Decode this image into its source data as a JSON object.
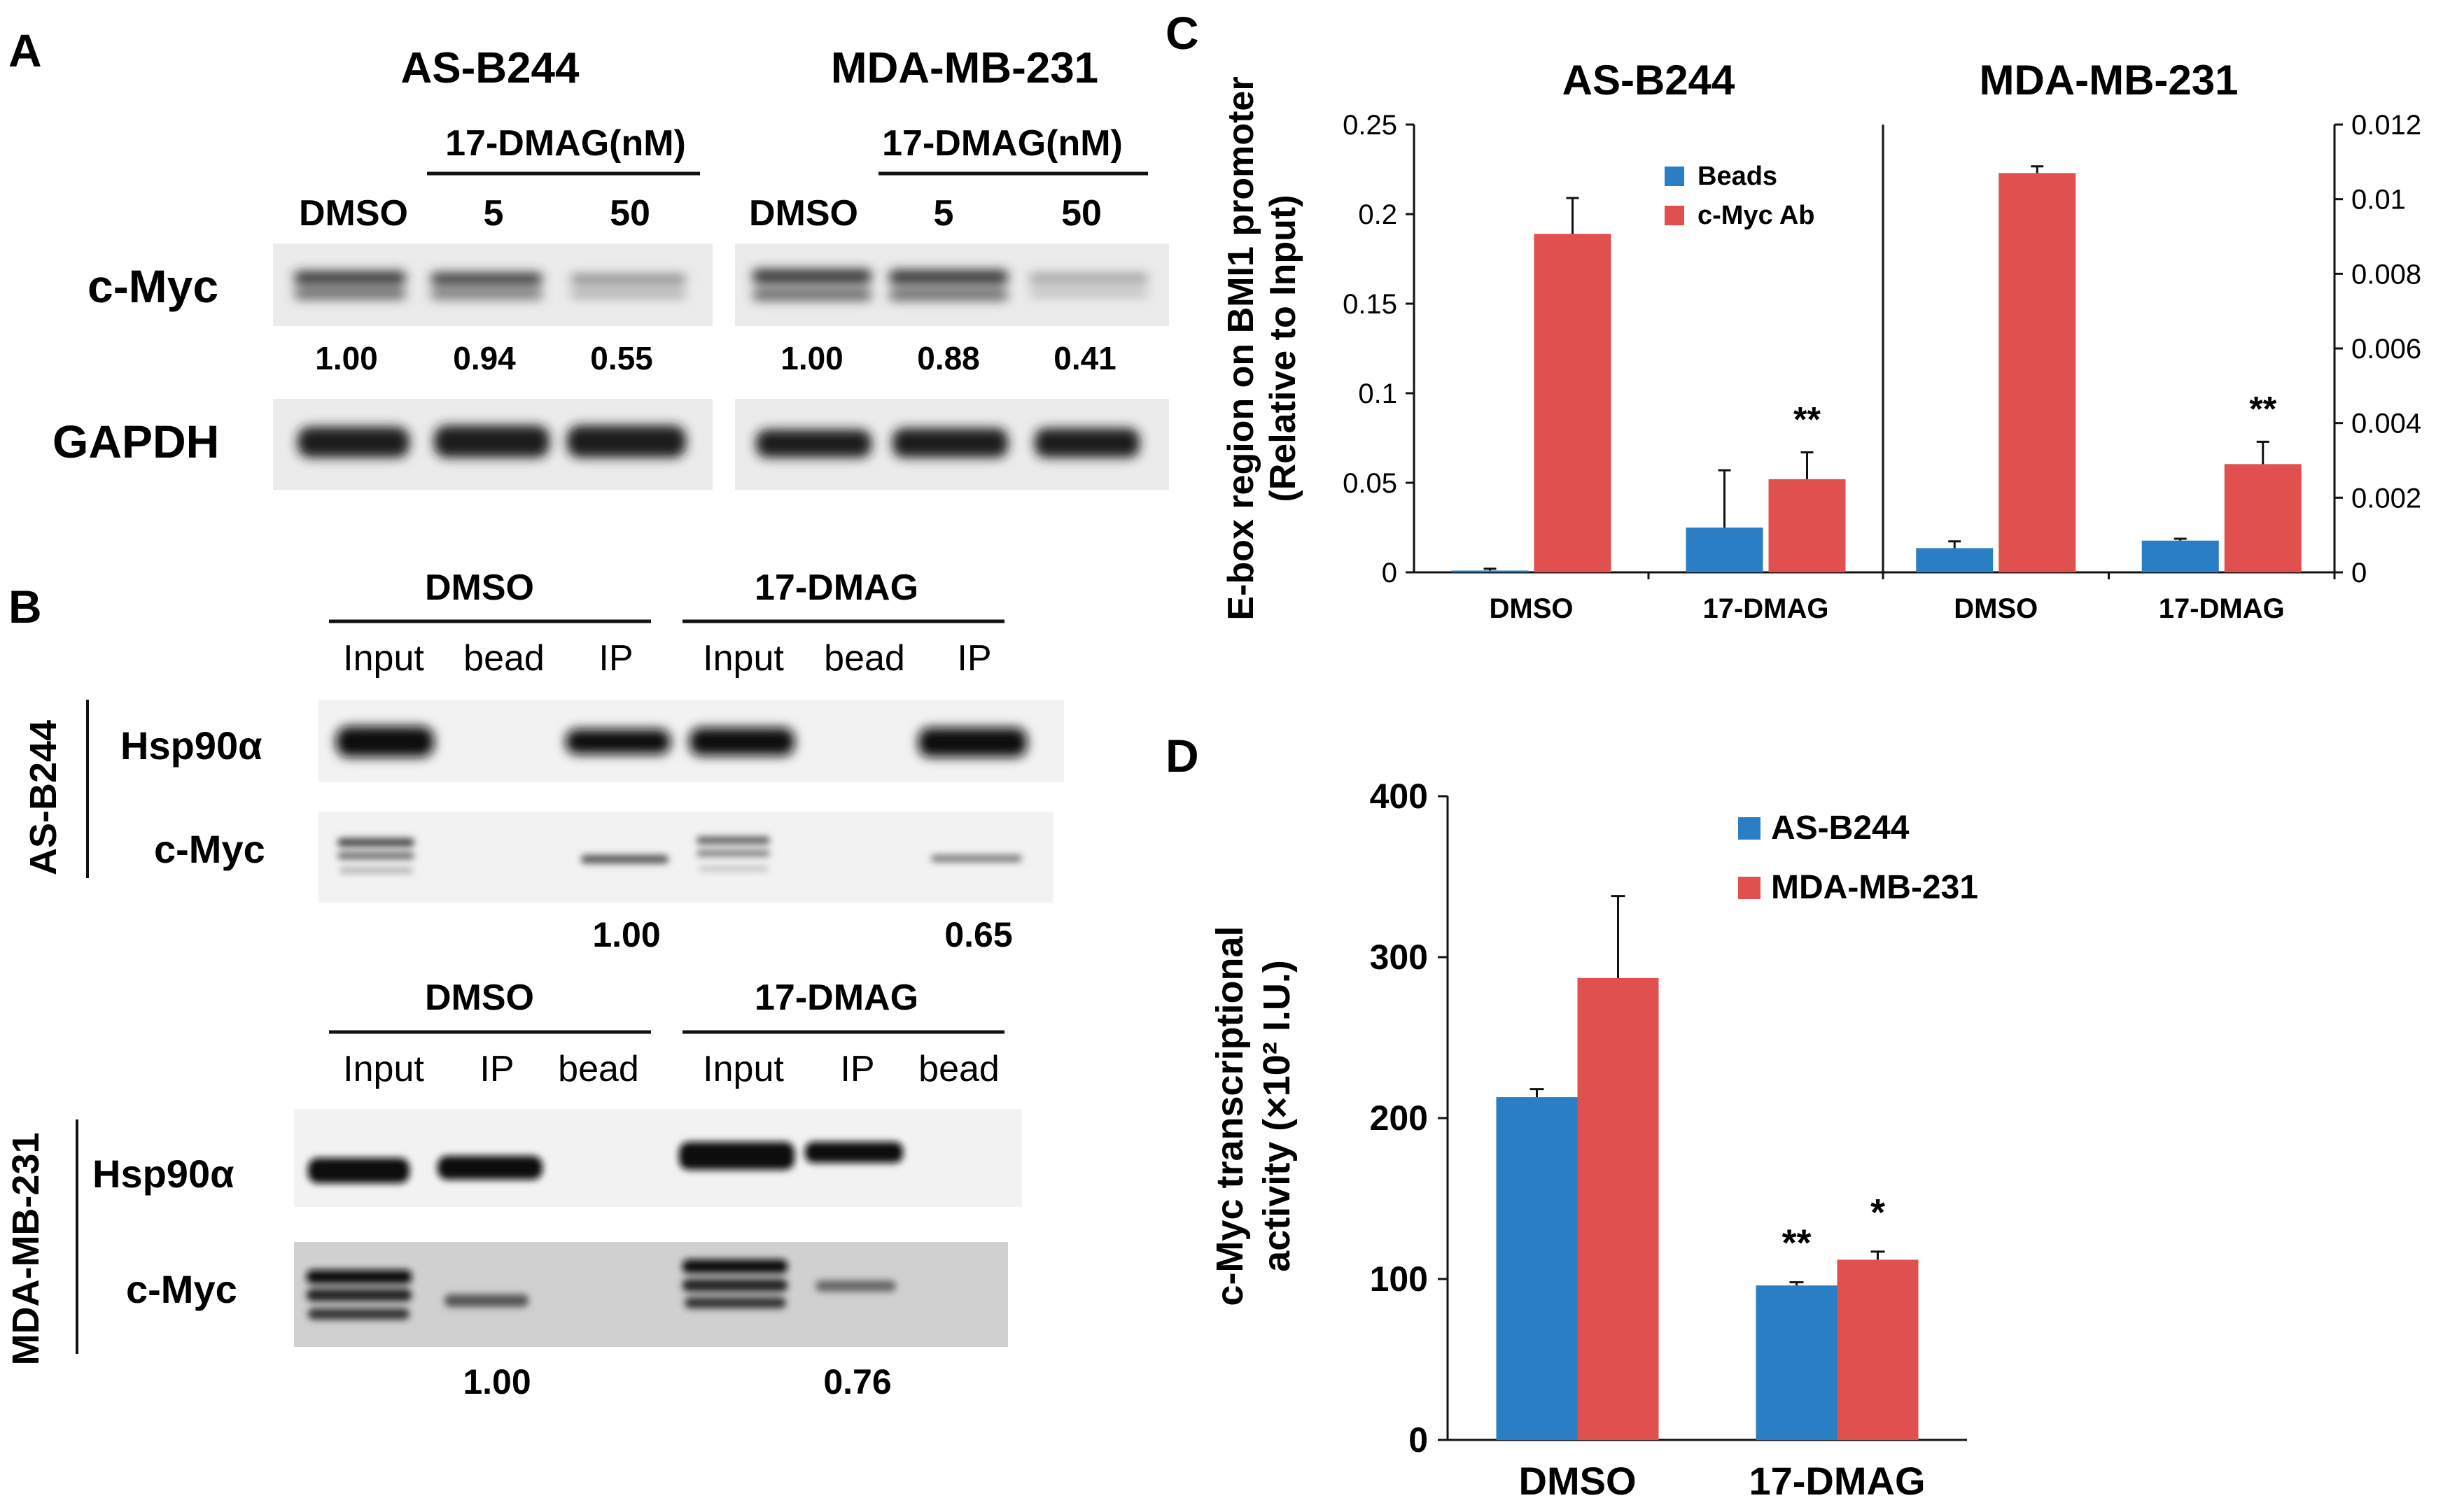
{
  "colors": {
    "blue": "#2a7ec4",
    "red": "#e0504f",
    "text": "#111111"
  },
  "panelA": {
    "letter": "A",
    "titles": [
      "AS-B244",
      "MDA-MB-231"
    ],
    "treatment": "17-DMAG(nM)",
    "lanes": [
      "DMSO",
      "5",
      "50"
    ],
    "row_labels": [
      "c-Myc",
      "GAPDH"
    ],
    "quant": [
      [
        "1.00",
        "0.94",
        "0.55"
      ],
      [
        "1.00",
        "0.88",
        "0.41"
      ]
    ]
  },
  "panelB": {
    "letter": "B",
    "top": {
      "cell": "AS-B244",
      "groups": [
        "DMSO",
        "17-DMAG"
      ],
      "lanes": [
        "Input",
        "bead",
        "IP",
        "Input",
        "bead",
        "IP"
      ],
      "rows": [
        "Hsp90α",
        "c-Myc"
      ],
      "quant": [
        "1.00",
        "0.65"
      ]
    },
    "bottom": {
      "cell": "MDA-MB-231",
      "groups": [
        "DMSO",
        "17-DMAG"
      ],
      "lanes": [
        "Input",
        "IP",
        "bead",
        "Input",
        "IP",
        "bead"
      ],
      "rows": [
        "Hsp90α",
        "c-Myc"
      ],
      "quant": [
        "1.00",
        "0.76"
      ]
    }
  },
  "chart_data": [
    {
      "panel": "C",
      "type": "bar",
      "ylabel_lines": [
        "E-box region on BMI1 promoter",
        "(Relative to Input)"
      ],
      "legend": [
        "Beads",
        "c-Myc Ab"
      ],
      "legend_position": "top-center",
      "facets": [
        {
          "title": "AS-B244",
          "axis": "left",
          "ylim": [
            0,
            0.25
          ],
          "ticks": [
            "0",
            "0.05",
            "0.1",
            "0.15",
            "0.2",
            "0.25"
          ],
          "categories": [
            "DMSO",
            "17-DMAG"
          ],
          "series": [
            {
              "name": "Beads",
              "values": [
                0.001,
                0.025
              ],
              "errors": [
                0.001,
                0.032
              ]
            },
            {
              "name": "c-Myc Ab",
              "values": [
                0.189,
                0.052
              ],
              "errors": [
                0.02,
                0.015
              ]
            }
          ],
          "annotations": [
            "",
            "**"
          ]
        },
        {
          "title": "MDA-MB-231",
          "axis": "right",
          "ylim": [
            0,
            0.012
          ],
          "ticks": [
            "0",
            "0.002",
            "0.004",
            "0.006",
            "0.008",
            "0.01",
            "0.012"
          ],
          "categories": [
            "DMSO",
            "17-DMAG"
          ],
          "series": [
            {
              "name": "Beads",
              "values": [
                0.00065,
                0.00085
              ],
              "errors": [
                0.00018,
                5e-05
              ]
            },
            {
              "name": "c-Myc Ab",
              "values": [
                0.0107,
                0.0029
              ],
              "errors": [
                0.00018,
                0.0006
              ]
            }
          ],
          "annotations": [
            "",
            "**"
          ]
        }
      ]
    },
    {
      "panel": "D",
      "type": "bar",
      "ylabel_lines": [
        "c-Myc transcriptional",
        "activity (×10² I.U.)"
      ],
      "ylim": [
        0,
        400
      ],
      "ticks": [
        "0",
        "100",
        "200",
        "300",
        "400"
      ],
      "categories": [
        "DMSO",
        "17-DMAG"
      ],
      "series": [
        {
          "name": "AS-B244",
          "values": [
            213,
            96
          ],
          "errors": [
            5,
            2
          ]
        },
        {
          "name": "MDA-MB-231",
          "values": [
            287,
            112
          ],
          "errors": [
            51,
            5
          ]
        }
      ],
      "annotations": [
        [
          "",
          ""
        ],
        [
          "**",
          "*"
        ]
      ],
      "legend_position": "top-right"
    }
  ]
}
